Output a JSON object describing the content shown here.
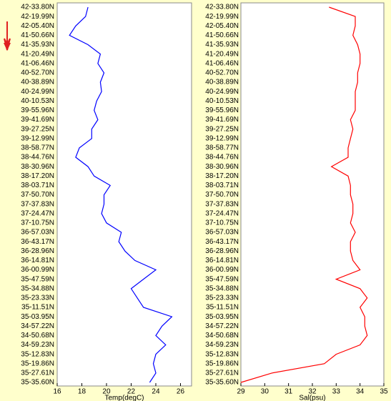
{
  "chart_data": [
    {
      "type": "line",
      "xlabel": "Temp(degC)",
      "color": "#0000ff",
      "categories": [
        "42-33.80N",
        "42-19.99N",
        "42-05.40N",
        "41-50.66N",
        "41-35.93N",
        "41-20.49N",
        "41-06.46N",
        "40-52.70N",
        "40-38.89N",
        "40-24.99N",
        "40-10.53N",
        "39-55.96N",
        "39-41.69N",
        "39-27.25N",
        "39-12.99N",
        "38-58.77N",
        "38-44.76N",
        "38-30.96N",
        "38-17.20N",
        "38-03.71N",
        "37-50.70N",
        "37-37.83N",
        "37-24.47N",
        "37-10.75N",
        "36-57.03N",
        "36-43.17N",
        "36-28.96N",
        "36-14.81N",
        "36-00.99N",
        "35-47.59N",
        "35-34.88N",
        "35-23.33N",
        "35-11.51N",
        "35-03.95N",
        "34-57.22N",
        "34-50.68N",
        "34-59.23N",
        "35-12.83N",
        "35-19.86N",
        "35-27.61N",
        "35-35.60N"
      ],
      "values": [
        18.5,
        18.3,
        17.5,
        17.0,
        18.5,
        19.5,
        19.3,
        19.8,
        19.5,
        19.6,
        19.2,
        19.0,
        19.3,
        18.8,
        18.8,
        17.8,
        17.5,
        18.5,
        19.0,
        20.3,
        19.8,
        19.8,
        19.6,
        20.0,
        21.2,
        21.0,
        21.5,
        22.3,
        24.0,
        23.0,
        22.0,
        22.5,
        23.0,
        25.3,
        24.5,
        24.0,
        24.8,
        24.0,
        23.8,
        24.0,
        23.5
      ],
      "xlim": [
        16,
        26.9
      ],
      "xticks": [
        16,
        18,
        20,
        22,
        24,
        26
      ]
    },
    {
      "type": "line",
      "xlabel": "Sal(psu)",
      "color": "#ff0000",
      "categories": [
        "42-33.80N",
        "42-19.99N",
        "42-05.40N",
        "41-50.66N",
        "41-35.93N",
        "41-20.49N",
        "41-06.46N",
        "40-52.70N",
        "40-38.89N",
        "40-24.99N",
        "40-10.53N",
        "39-55.96N",
        "39-41.69N",
        "39-27.25N",
        "39-12.99N",
        "38-58.77N",
        "38-44.76N",
        "38-30.96N",
        "38-17.20N",
        "38-03.71N",
        "37-50.70N",
        "37-37.83N",
        "37-24.47N",
        "37-10.75N",
        "36-57.03N",
        "36-43.17N",
        "36-28.96N",
        "36-14.81N",
        "36-00.99N",
        "35-47.59N",
        "35-34.88N",
        "35-23.33N",
        "35-11.51N",
        "35-03.95N",
        "34-57.22N",
        "34-50.68N",
        "34-59.23N",
        "35-12.83N",
        "35-19.86N",
        "35-27.61N",
        "35-35.60N"
      ],
      "values": [
        32.7,
        33.8,
        33.8,
        33.7,
        33.9,
        34.0,
        34.0,
        33.9,
        33.9,
        33.8,
        33.8,
        33.8,
        33.6,
        33.7,
        33.6,
        33.5,
        33.5,
        32.8,
        33.5,
        33.6,
        33.6,
        33.7,
        33.7,
        33.6,
        33.8,
        33.6,
        33.6,
        33.7,
        34.0,
        33.0,
        34.0,
        34.3,
        34.0,
        34.2,
        34.2,
        34.3,
        34.0,
        33.0,
        32.5,
        30.3,
        29.0
      ],
      "xlim": [
        29,
        35
      ],
      "xticks": [
        29,
        30,
        31,
        32,
        33,
        34,
        35
      ]
    }
  ]
}
